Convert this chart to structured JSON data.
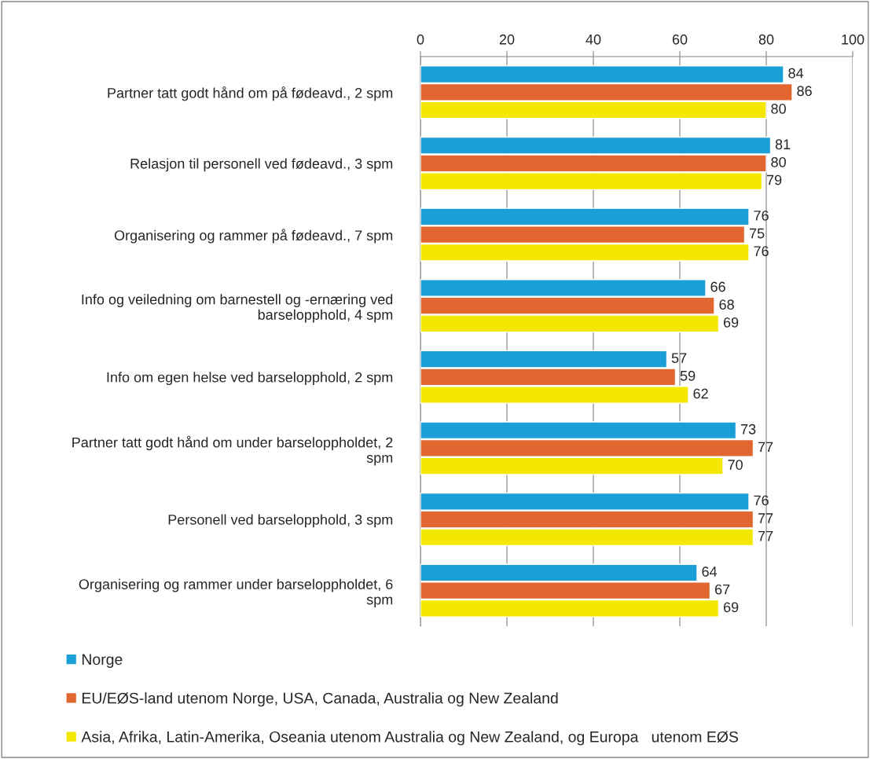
{
  "chart_data": {
    "type": "bar",
    "orientation": "horizontal",
    "categories": [
      "Partner tatt godt hånd om på fødeavd., 2 spm",
      "Relasjon til personell ved fødeavd., 3 spm",
      "Organisering og rammer på fødeavd., 7 spm",
      "Info og veiledning om barnestell og -ernæring ved\nbarselopphold, 4 spm",
      "Info om egen helse ved barselopphold, 2 spm",
      "Partner tatt godt hånd om under barseloppholdet, 2\nspm",
      "Personell ved barselopphold, 3 spm",
      "Organisering og rammer under barseloppholdet, 6\nspm"
    ],
    "series": [
      {
        "name": "Norge",
        "color": "#1aa0d6",
        "values": [
          84,
          81,
          76,
          66,
          57,
          73,
          76,
          64
        ]
      },
      {
        "name": "EU/EØS-land utenom Norge, USA, Canada, Australia og New Zealand",
        "color": "#e2662f",
        "values": [
          86,
          80,
          75,
          68,
          59,
          77,
          77,
          67
        ]
      },
      {
        "name": "Asia, Afrika, Latin-Amerika, Oseania utenom Australia og New Zealand, og Europa   utenom EØS",
        "color": "#f4e800",
        "values": [
          80,
          79,
          76,
          69,
          62,
          70,
          77,
          69
        ]
      }
    ],
    "xlim": [
      0,
      100
    ],
    "xticks": [
      0,
      20,
      40,
      60,
      80,
      100
    ],
    "grid": "x",
    "legend": "bottom",
    "data_labels": true
  }
}
